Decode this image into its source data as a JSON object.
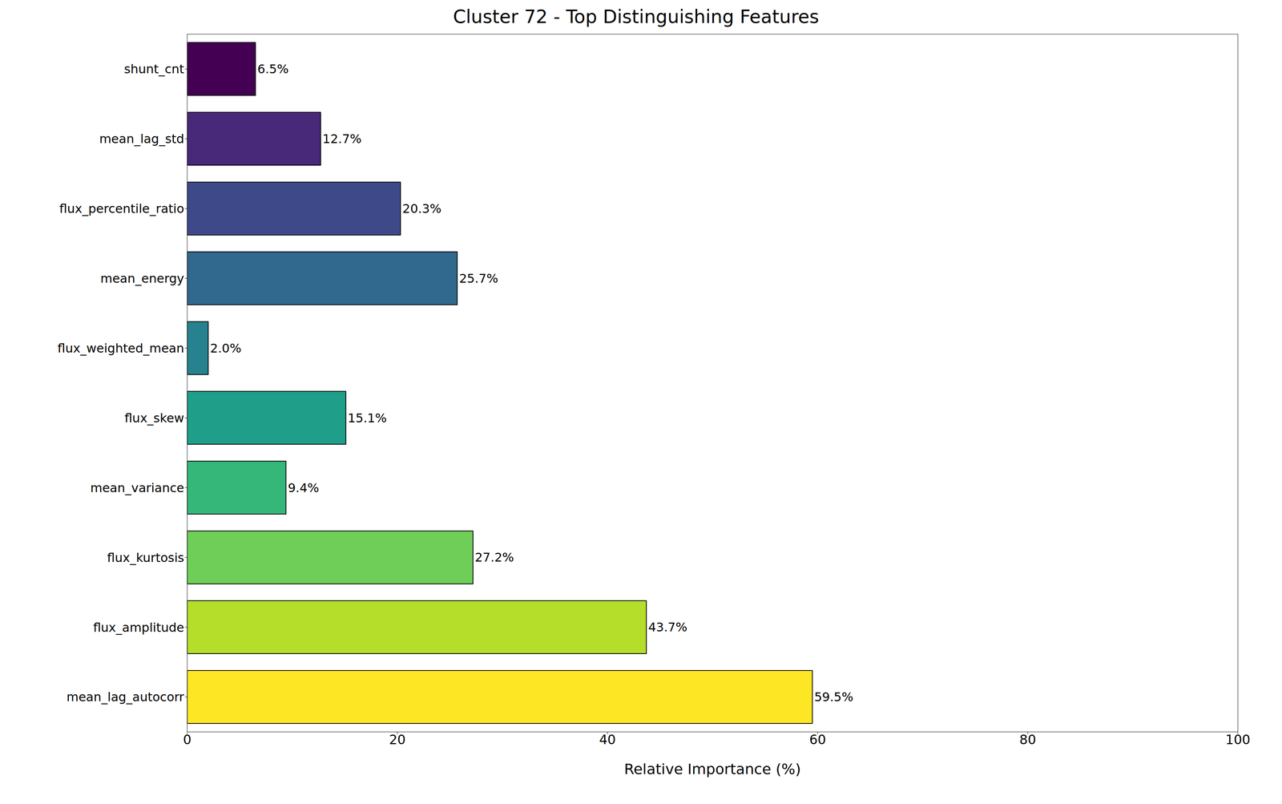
{
  "chart_data": {
    "type": "bar",
    "orientation": "horizontal",
    "title": "Cluster 72 - Top Distinguishing Features",
    "x_label": "Relative Importance (%)",
    "categories": [
      "shunt_cnt",
      "mean_lag_std",
      "flux_percentile_ratio",
      "mean_energy",
      "flux_weighted_mean",
      "flux_skew",
      "mean_variance",
      "flux_kurtosis",
      "flux_amplitude",
      "mean_lag_autocorr"
    ],
    "values": [
      6.5,
      12.7,
      20.3,
      25.7,
      2.0,
      15.1,
      9.4,
      27.2,
      43.7,
      59.5
    ],
    "value_labels": [
      "6.5%",
      "12.7%",
      "20.3%",
      "25.7%",
      "2.0%",
      "15.1%",
      "9.4%",
      "27.2%",
      "43.7%",
      "59.5%"
    ],
    "colors": [
      "#440154",
      "#482878",
      "#3e4989",
      "#31688e",
      "#26828e",
      "#1f9e89",
      "#35b779",
      "#6ece58",
      "#b5de2b",
      "#fde725"
    ],
    "xlim": [
      0,
      100
    ],
    "xticks": [
      0,
      20,
      40,
      60,
      80,
      100
    ],
    "grid": false,
    "data_labels": true
  }
}
